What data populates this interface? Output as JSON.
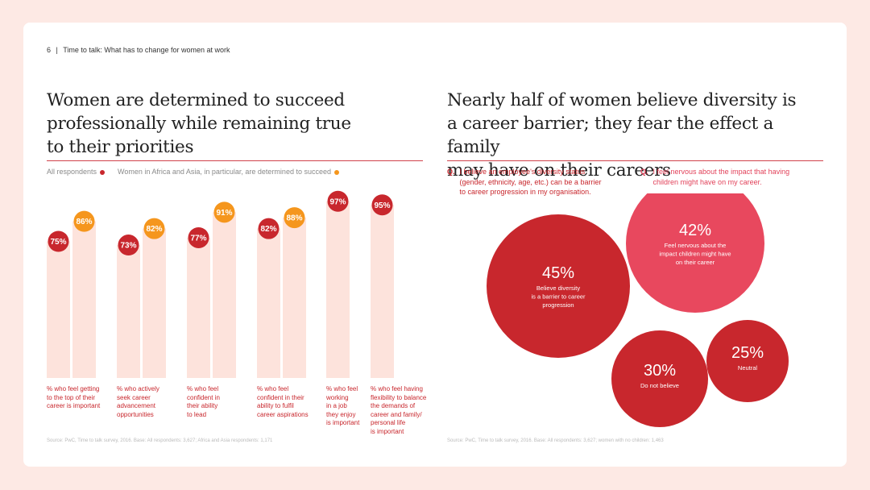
{
  "header": {
    "page_number": "6",
    "separator": "|",
    "doc_title": "Time to talk: What has to change for women at work"
  },
  "left": {
    "title_lines": [
      "Women are determined to succeed",
      "professionally while remaining true",
      "to their priorities"
    ],
    "legend": {
      "all_label": "All respondents",
      "region_label": "Women in Africa and Asia, in particular, are determined to succeed"
    },
    "source": "Source: PwC, Time to talk survey, 2016. Base: All respondents: 3,627; Africa and Asia respondents: 1,171"
  },
  "right": {
    "title_lines": [
      "Nearly half of women believe diversity is",
      "a career barrier; they fear the effect a family",
      "may have on their careers"
    ],
    "q1": {
      "mark": "Q.",
      "lines": [
        "I believe an employee's diversity status",
        "(gender, ethnicity, age, etc.) can be a barrier",
        "to career progression in my organisation."
      ]
    },
    "q2": {
      "mark": "Q.",
      "lines": [
        "I feel nervous about the impact that having",
        "children might have on my career."
      ]
    },
    "source": "Source: PwC, Time to talk survey, 2016. Base: All respondents: 3,627; women with no children: 1,463"
  },
  "colors": {
    "red": "#c8272d",
    "orange": "#f5961d",
    "pink": "#e8485e",
    "bar_bg": "#fde3dc",
    "rule": "#d1434b"
  },
  "chart_data": [
    {
      "type": "bar",
      "title": "Women are determined to succeed professionally while remaining true to their priorities",
      "ylim": [
        0,
        100
      ],
      "series": [
        {
          "name": "All respondents",
          "values": [
            75,
            73,
            77,
            82,
            97,
            95
          ]
        },
        {
          "name": "Women in Africa and Asia",
          "values": [
            86,
            82,
            91,
            88,
            null,
            null
          ]
        }
      ],
      "value_labels": {
        "all": [
          "75%",
          "73%",
          "77%",
          "82%",
          "97%",
          "95%"
        ],
        "region": [
          "86%",
          "82%",
          "91%",
          "88%",
          "",
          ""
        ]
      },
      "categories": [
        [
          "% who feel getting",
          "to the top of their",
          "career is important"
        ],
        [
          "% who actively",
          "seek career",
          "advancement",
          "opportunities"
        ],
        [
          "% who feel",
          "confident in",
          "their ability",
          "to lead"
        ],
        [
          "% who feel",
          "confident in their",
          "ability to fulfil",
          "career aspirations"
        ],
        [
          "% who feel",
          "working",
          "in a job",
          "they enjoy",
          "is important"
        ],
        [
          "% who feel having",
          "flexibility to balance",
          "the demands of",
          "career and family/",
          "personal life",
          "is important"
        ]
      ]
    },
    {
      "type": "bubble",
      "title": "Nearly half of women believe diversity is a career barrier",
      "values": [
        45,
        42,
        30,
        25
      ],
      "labels": [
        "45%",
        "42%",
        "30%",
        "25%"
      ],
      "captions": [
        [
          "Believe diversity",
          "is a barrier to career",
          "progression"
        ],
        [
          "Feel nervous about the",
          "impact children might have",
          "on their career"
        ],
        [
          "Do not believe"
        ],
        [
          "Neutral"
        ]
      ]
    }
  ]
}
